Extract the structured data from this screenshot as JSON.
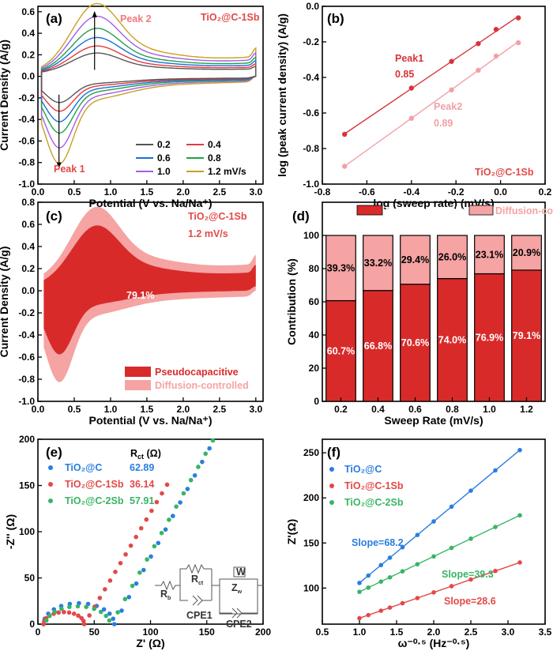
{
  "chart_data": [
    {
      "id": "a",
      "type": "line",
      "panel_label": "(a)",
      "annotation": "TiO₂@C-1Sb",
      "xlabel": "Potential (V vs. Na/Na⁺)",
      "ylabel": "Current Density (A/g)",
      "xlim": [
        0,
        3.1
      ],
      "ylim": [
        -1.0,
        0.65
      ],
      "xticks": [
        0.0,
        0.5,
        1.0,
        1.5,
        2.0,
        2.5,
        3.0
      ],
      "yticks": [
        -1.0,
        -0.8,
        -0.6,
        -0.4,
        -0.2,
        0.0,
        0.2,
        0.4,
        0.6
      ],
      "peak_labels": [
        "Peak 2",
        "Peak 1"
      ],
      "legend_position": "bottom-right",
      "series": [
        {
          "name": "0.2",
          "color": "#555555",
          "scale": 0.3
        },
        {
          "name": "0.4",
          "color": "#e33a3a",
          "scale": 0.4
        },
        {
          "name": "0.6",
          "color": "#1a6fd6",
          "scale": 0.52
        },
        {
          "name": "0.8",
          "color": "#22a04a",
          "scale": 0.65
        },
        {
          "name": "1.0",
          "color": "#a45ee6",
          "scale": 0.82
        },
        {
          "name": "1.2 mV/s",
          "color": "#c8a020",
          "scale": 1.0
        }
      ],
      "peak_anodic": {
        "x": 0.78,
        "y": 0.6
      },
      "peak_cathodic": {
        "x": 0.29,
        "y": -0.85
      }
    },
    {
      "id": "b",
      "type": "scatter",
      "panel_label": "(b)",
      "annotation": "TiO₂@C-1Sb",
      "xlabel": "log (sweep rate) (mV/s)",
      "ylabel": "log (peak current density) (A/g)",
      "xlim": [
        -0.8,
        0.2
      ],
      "ylim": [
        -1.0,
        0.0
      ],
      "xticks": [
        -0.8,
        -0.6,
        -0.4,
        -0.2,
        0.0,
        0.2
      ],
      "yticks": [
        -1.0,
        -0.8,
        -0.6,
        -0.4,
        -0.2,
        0.0
      ],
      "series": [
        {
          "name": "Peak1",
          "slope_label": "0.85",
          "color": "#d8343a",
          "x": [
            -0.7,
            -0.4,
            -0.22,
            -0.1,
            -0.02,
            0.08
          ],
          "y": [
            -0.72,
            -0.46,
            -0.31,
            -0.21,
            -0.13,
            -0.065
          ]
        },
        {
          "name": "Peak2",
          "slope_label": "0.89",
          "color": "#f2a0a6",
          "x": [
            -0.7,
            -0.4,
            -0.22,
            -0.1,
            -0.02,
            0.08
          ],
          "y": [
            -0.9,
            -0.63,
            -0.47,
            -0.36,
            -0.28,
            -0.205
          ]
        }
      ]
    },
    {
      "id": "c",
      "type": "area",
      "panel_label": "(c)",
      "annotations": [
        "TiO₂@C-1Sb",
        "1.2 mV/s"
      ],
      "center_label": "79.1%",
      "xlabel": "Potential (V vs. Na/Na⁺)",
      "ylabel": "Current Density (A/g)",
      "xlim": [
        0,
        3.1
      ],
      "ylim": [
        -1.0,
        0.8
      ],
      "xticks": [
        0.0,
        0.5,
        1.0,
        1.5,
        2.0,
        2.5,
        3.0
      ],
      "yticks": [
        -1.0,
        -0.8,
        -0.6,
        -0.4,
        -0.2,
        0.0,
        0.2,
        0.4,
        0.6,
        0.8
      ],
      "legend": [
        {
          "name": "Pseudocapacitive",
          "color": "#d92a2a"
        },
        {
          "name": "Diffusion-controlled",
          "color": "#f5a3a3"
        }
      ],
      "outer_peak": {
        "x": 0.78,
        "y": 0.62
      },
      "inner_peak": {
        "x": 0.8,
        "y": 0.5
      }
    },
    {
      "id": "d",
      "type": "bar",
      "panel_label": "(d)",
      "xlabel": "Sweep Rate (mV/s)",
      "ylabel": "Contribution (%)",
      "ylim": [
        0,
        120
      ],
      "yticks": [
        0,
        20,
        40,
        60,
        80,
        100
      ],
      "categories": [
        "0.2",
        "0.4",
        "0.6",
        "0.8",
        "1.0",
        "1.2"
      ],
      "series": [
        {
          "name": "Pseudocapacitive",
          "color": "#d92a2a",
          "values": [
            60.7,
            66.8,
            70.6,
            74.0,
            76.9,
            79.1
          ],
          "labels": [
            "60.7%",
            "66.8%",
            "70.6%",
            "74.0%",
            "76.9%",
            "79.1%"
          ]
        },
        {
          "name": "Diffusion-controlled",
          "color": "#f5a3a3",
          "values": [
            39.3,
            33.2,
            29.4,
            26.0,
            23.1,
            20.9
          ],
          "labels": [
            "39.3%",
            "33.2%",
            "29.4%",
            "26.0%",
            "23.1%",
            "20.9%"
          ]
        }
      ]
    },
    {
      "id": "e",
      "type": "scatter",
      "panel_label": "(e)",
      "xlabel": "Z' (Ω)",
      "ylabel": "-Z'' (Ω)",
      "xlim": [
        0,
        200
      ],
      "ylim": [
        0,
        200
      ],
      "xticks": [
        0,
        50,
        100,
        150,
        200
      ],
      "yticks": [
        0,
        50,
        100,
        150,
        200
      ],
      "rct_header": "R",
      "rct_header_sub": "ct",
      "rct_header_unit": " (Ω)",
      "series": [
        {
          "name": "TiO₂@C",
          "rct": "62.89",
          "color": "#2a7de1"
        },
        {
          "name": "TiO₂@C-1Sb",
          "rct": "36.14",
          "color": "#e34848"
        },
        {
          "name": "TiO₂@C-2Sb",
          "rct": "57.91",
          "color": "#38b465"
        }
      ],
      "circuit_labels": {
        "rb": "R",
        "rb_sub": "b",
        "rct": "R",
        "rct_sub": "ct",
        "zw": "Z",
        "zw_sub": "w",
        "w": "W",
        "cpe1": "CPE1",
        "cpe2": "CPE2"
      }
    },
    {
      "id": "f",
      "type": "scatter",
      "panel_label": "(f)",
      "xlabel": "ω⁻⁰·⁵ (Hz⁻⁰·⁵)",
      "ylabel": "Z'(Ω)",
      "xlim": [
        0.5,
        3.5
      ],
      "ylim": [
        60,
        265
      ],
      "xticks": [
        0.5,
        1.0,
        1.5,
        2.0,
        2.5,
        3.0,
        3.5
      ],
      "yticks": [
        100,
        150,
        200,
        250
      ],
      "series": [
        {
          "name": "TiO₂@C",
          "slope_label": "Slope=68.2",
          "color": "#2a7de1",
          "slope": 68.2,
          "intercept": 37.5
        },
        {
          "name": "TiO₂@C-1Sb",
          "slope_label": "Slope=28.6",
          "color": "#e34848",
          "slope": 28.6,
          "intercept": 38.0
        },
        {
          "name": "TiO₂@C-2Sb",
          "slope_label": "Slope=39.3",
          "color": "#38b465",
          "slope": 39.3,
          "intercept": 56.5
        }
      ],
      "x": [
        1.0,
        1.12,
        1.29,
        1.41,
        1.58,
        1.78,
        2.0,
        2.24,
        2.5,
        2.83,
        3.16
      ]
    }
  ]
}
